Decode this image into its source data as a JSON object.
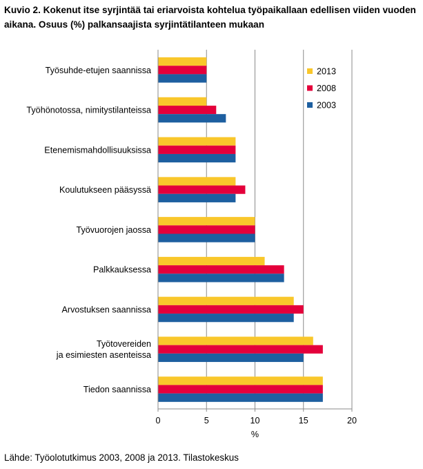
{
  "page": {
    "title": "Kuvio 2. Kokenut itse syrjintää tai eriarvoista kohtelua työpaikallaan edellisen viiden vuoden aikana. Osuus (%) palkansaajista syrjintätilanteen mukaan",
    "source": "Lähde: Työolotutkimus 2003, 2008 ja 2013. Tilastokeskus"
  },
  "chart_data": {
    "type": "bar",
    "orientation": "horizontal",
    "categories": [
      "Työsuhde-etujen saannissa",
      "Työhönotossa, nimitystilanteissa",
      "Etenemismahdollisuuksissa",
      "Koulutukseen pääsyssä",
      "Työvuorojen jaossa",
      "Palkkauksessa",
      "Arvostuksen saannissa",
      "Työtovereiden\nja esimiesten asenteissa",
      "Tiedon saannissa"
    ],
    "series": [
      {
        "name": "2013",
        "color": "#f9c72b",
        "values": [
          5,
          5,
          8,
          8,
          10,
          11,
          14,
          16,
          17
        ]
      },
      {
        "name": "2008",
        "color": "#e4003b",
        "values": [
          5,
          6,
          8,
          9,
          10,
          13,
          15,
          17,
          17
        ]
      },
      {
        "name": "2003",
        "color": "#1d5fa0",
        "values": [
          5,
          7,
          8,
          8,
          10,
          13,
          14,
          15,
          17
        ]
      }
    ],
    "xlabel": "%",
    "ylabel": "",
    "xlim": [
      0,
      20
    ],
    "xticks": [
      0,
      5,
      10,
      15,
      20
    ],
    "grid": true,
    "legend_position": "top-right"
  }
}
